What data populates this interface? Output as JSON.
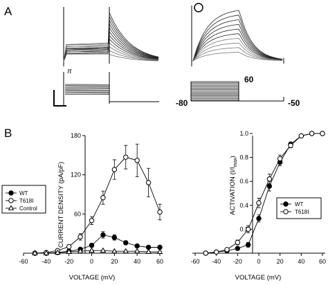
{
  "figure": {
    "panel_a_label": "A",
    "panel_b_label": "B",
    "trace_marker_a": "π",
    "trace_marker_b": "O",
    "protocol": {
      "holding_label": "-80",
      "step_top_label": "60",
      "tail_label": "-50"
    }
  },
  "chart_data": [
    {
      "type": "line",
      "ylabel": "CURRENT DENSITY (pA/pF)",
      "xlabel": "VOLTAGE (mV)",
      "xlim": [
        -60,
        60
      ],
      "ylim": [
        0,
        180
      ],
      "x_ticks": [
        "-60",
        "-40",
        "-20",
        "0",
        "20",
        "40",
        "60"
      ],
      "y_ticks": [
        "60",
        "120",
        "180"
      ],
      "grid": false,
      "legend_position": "left",
      "x": [
        -50,
        -40,
        -30,
        -20,
        -10,
        0,
        10,
        20,
        30,
        40,
        50,
        60
      ],
      "series": [
        {
          "name": "WT",
          "marker": "filled-circle",
          "values": [
            0,
            0,
            1,
            3,
            6,
            12,
            28,
            24,
            16,
            11,
            9,
            9
          ],
          "error": [
            0,
            0,
            1,
            1,
            2,
            3,
            5,
            4,
            3,
            2,
            2,
            2
          ]
        },
        {
          "name": "T618I",
          "marker": "open-circle",
          "values": [
            0,
            1,
            4,
            10,
            25,
            50,
            85,
            128,
            147,
            142,
            108,
            63
          ],
          "error": [
            0,
            0,
            1,
            3,
            5,
            6,
            10,
            15,
            18,
            25,
            22,
            12
          ]
        },
        {
          "name": "Control",
          "marker": "open-triangle",
          "values": [
            0,
            0,
            1,
            2,
            3,
            4,
            4,
            3,
            3,
            3,
            2,
            2
          ],
          "error": [
            0,
            0,
            0,
            1,
            1,
            1,
            1,
            1,
            1,
            1,
            1,
            1
          ]
        }
      ]
    },
    {
      "type": "line",
      "ylabel": "ACTIVATION (I/I",
      "ylabel_sub": "max",
      "ylabel_close": ")",
      "xlabel": "VOLTAGE (mV)",
      "xlim": [
        -60,
        60
      ],
      "ylim": [
        0,
        1.0
      ],
      "x_ticks": [
        "-60",
        "-40",
        "-20",
        "0",
        "20",
        "40",
        "60"
      ],
      "y_ticks": [
        "0.2",
        "0.4",
        "0.6",
        "0.8",
        "1.0"
      ],
      "grid": false,
      "legend_position": "right",
      "x": [
        -50,
        -40,
        -30,
        -20,
        -10,
        0,
        10,
        20,
        30,
        40,
        50,
        60
      ],
      "series": [
        {
          "name": "WT",
          "marker": "filled-circle",
          "values": [
            0.0,
            0.01,
            0.02,
            0.04,
            0.07,
            0.29,
            0.56,
            0.76,
            0.91,
            0.98,
            1.0,
            1.0
          ],
          "error": [
            0,
            0,
            0.01,
            0.01,
            0.02,
            0.03,
            0.04,
            0.03,
            0.02,
            0.01,
            0.01,
            0
          ]
        },
        {
          "name": "T618I",
          "marker": "open-circle",
          "values": [
            0.0,
            0.01,
            0.03,
            0.09,
            0.2,
            0.42,
            0.62,
            0.79,
            0.9,
            0.98,
            1.0,
            1.0
          ],
          "error": [
            0,
            0,
            0.01,
            0.02,
            0.03,
            0.04,
            0.04,
            0.03,
            0.02,
            0.01,
            0.01,
            0
          ]
        }
      ]
    }
  ]
}
